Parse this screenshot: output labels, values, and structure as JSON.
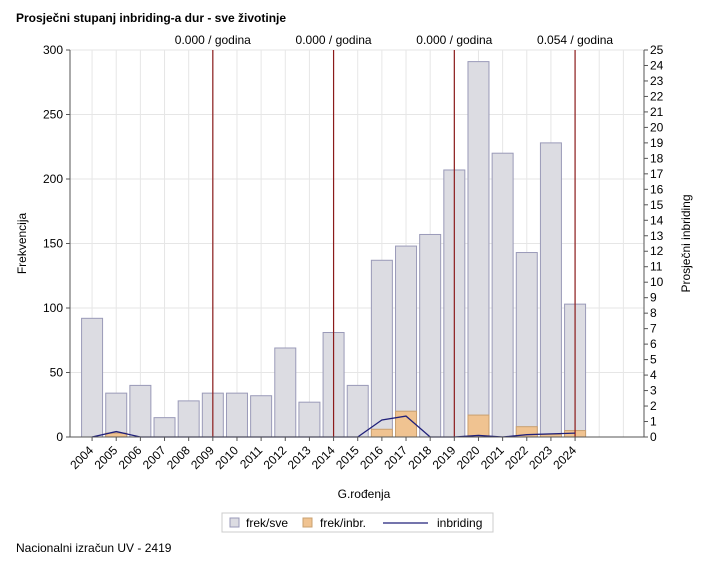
{
  "title": "Prosječni stupanj inbriding-a dur - sve životinje",
  "footer": "Nacionalni izračun UV - 2419",
  "chart_data": {
    "type": "bar",
    "categories": [
      "2004",
      "2005",
      "2006",
      "2007",
      "2008",
      "2009",
      "2010",
      "2011",
      "2012",
      "2013",
      "2014",
      "2015",
      "2016",
      "2017",
      "2018",
      "2019",
      "2020",
      "2021",
      "2022",
      "2023",
      "2024"
    ],
    "series": [
      {
        "name": "frek/sve",
        "type": "bar",
        "axis": "left",
        "color": "#dcdce2",
        "values": [
          92,
          34,
          40,
          15,
          28,
          34,
          34,
          32,
          69,
          27,
          81,
          40,
          137,
          148,
          157,
          207,
          291,
          220,
          143,
          228,
          103
        ]
      },
      {
        "name": "frek/inbr.",
        "type": "bar",
        "axis": "left",
        "color": "#f0c391",
        "values": [
          0,
          3,
          0,
          0,
          0,
          0,
          0,
          0,
          0,
          0,
          0,
          0,
          6,
          20,
          0,
          0,
          17,
          0,
          8,
          2,
          5
        ]
      },
      {
        "name": "inbriding",
        "type": "line",
        "axis": "right",
        "color": "#20207a",
        "values": [
          0,
          0.35,
          0,
          0,
          0,
          0,
          0,
          0,
          0,
          0,
          0,
          0,
          1.1,
          1.35,
          0,
          0,
          0.1,
          0,
          0.15,
          0.2,
          0.25
        ]
      }
    ],
    "reference_lines": [
      {
        "category": "2009",
        "label": "0.000 / godina"
      },
      {
        "category": "2014",
        "label": "0.000 / godina"
      },
      {
        "category": "2019",
        "label": "0.000 / godina"
      },
      {
        "category": "2024",
        "label": "0.054 / godina"
      }
    ],
    "xlabel": "G.rođenja",
    "ylabel": "Frekvencija",
    "y2label": "Prosječni inbriding",
    "ylim": [
      0,
      300
    ],
    "yticks": [
      0,
      50,
      100,
      150,
      200,
      250,
      300
    ],
    "y2lim": [
      0,
      25
    ],
    "y2ticks": [
      0,
      1,
      2,
      3,
      4,
      5,
      6,
      7,
      8,
      9,
      10,
      11,
      12,
      13,
      14,
      15,
      16,
      17,
      18,
      19,
      20,
      21,
      22,
      23,
      24,
      25
    ],
    "grid": true,
    "legend_position": "bottom",
    "colors": {
      "bar_stroke": "#9a9ab8",
      "refline": "#8b1a1a",
      "grid": "#e6e6e6",
      "axis": "#555555"
    }
  }
}
